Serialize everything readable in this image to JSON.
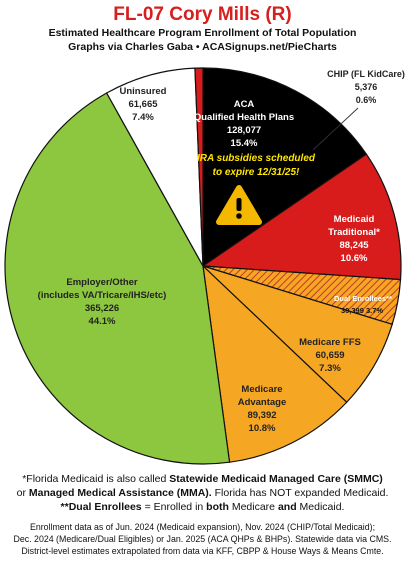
{
  "header": {
    "title": "FL-07 Cory Mills (R)",
    "subtitle1": "Estimated Healthcare Program Enrollment of Total Population",
    "subtitle2": "Graphs via Charles Gaba  •  ACASignups.net/PieCharts"
  },
  "chart_data": {
    "type": "pie",
    "title": "FL-07 Cory Mills (R)",
    "slices": [
      {
        "label": "ACA Qualified Health Plans",
        "value": 128077,
        "pct": "15.4%",
        "color": "#000000"
      },
      {
        "label": "Medicaid Traditional*",
        "value": 88245,
        "pct": "10.6%",
        "color": "#d81b1b"
      },
      {
        "label": "Dual Enrollees**",
        "value": 30399,
        "pct": "3.7%",
        "color": "#f5a623",
        "hatched": true
      },
      {
        "label": "Medicare FFS",
        "value": 60659,
        "pct": "7.3%",
        "color": "#f5a623"
      },
      {
        "label": "Medicare Advantage",
        "value": 89392,
        "pct": "10.8%",
        "color": "#f5a623"
      },
      {
        "label": "Employer/Other (includes VA/Tricare/IHS/etc)",
        "value": 365226,
        "pct": "44.1%",
        "color": "#8dc63f"
      },
      {
        "label": "Uninsured",
        "value": 61665,
        "pct": "7.4%",
        "color": "#ffffff"
      },
      {
        "label": "CHIP (FL KidCare)",
        "value": 5376,
        "pct": "0.6%",
        "color": "#d81b1b"
      }
    ]
  },
  "labels": {
    "aca": [
      "ACA",
      "Qualified Health Plans",
      "128,077",
      "15.4%"
    ],
    "warning": [
      "IRA subsidies scheduled",
      "to expire 12/31/25!"
    ],
    "medicaid": [
      "Medicaid",
      "Traditional*",
      "88,245",
      "10.6%"
    ],
    "dual": [
      "Dual Enrollees**",
      "30,399 3.7%"
    ],
    "ffs": [
      "Medicare FFS",
      "60,659",
      "7.3%"
    ],
    "advantage": [
      "Medicare",
      "Advantage",
      "89,392",
      "10.8%"
    ],
    "employer": [
      "Employer/Other",
      "(includes VA/Tricare/IHS/etc)",
      "365,226",
      "44.1%"
    ],
    "uninsured": [
      "Uninsured",
      "61,665",
      "7.4%"
    ],
    "chip": [
      "CHIP (FL KidCare)",
      "5,376",
      "0.6%"
    ]
  },
  "footnotes": {
    "f1_a": "*Florida Medicaid is also called ",
    "f1_b": "Statewide Medicaid Managed Care (SMMC)",
    "f1_c": "or ",
    "f1_d": "Managed Medical Assistance (MMA).",
    "f1_e": " Florida has NOT expanded Medicaid.",
    "f2_a": "**Dual Enrollees",
    "f2_b": " = Enrolled in ",
    "f2_c": "both",
    "f2_d": " Medicare ",
    "f2_e": "and",
    "f2_f": " Medicaid.",
    "f3": "Enrollment data as of Jun. 2024 (Medicaid expansion), Nov. 2024 (CHIP/Total Medicaid);",
    "f4": "Dec. 2024 (Medicare/Dual Eligibles) or Jan. 2025 (ACA QHPs & BHPs). Statewide data via CMS.",
    "f5": "District-level estimates extrapolated from data via KFF, CBPP & House Ways & Means Cmte."
  },
  "colors": {
    "title": "#d61f1f",
    "warning_text": "#ffe600",
    "warning_icon": "#f5b800"
  }
}
